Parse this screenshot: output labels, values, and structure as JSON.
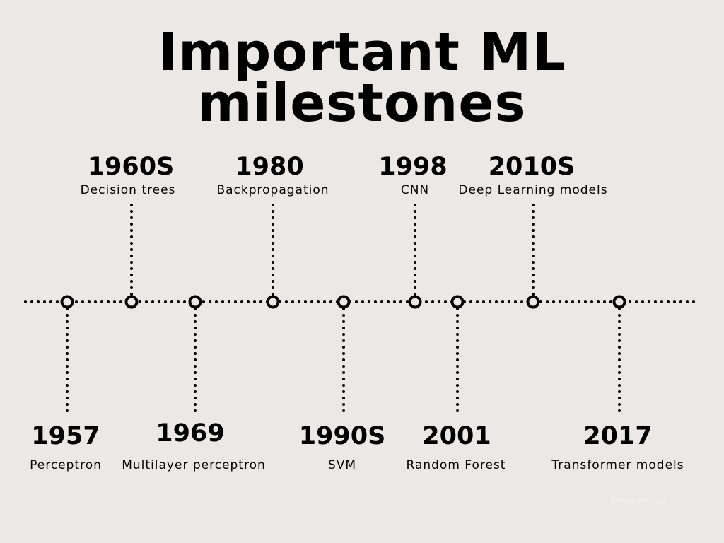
{
  "title": {
    "line1": "Important ML",
    "line2": "milestones"
  },
  "milestones": [
    {
      "year": "1957",
      "label": "Perceptron",
      "side": "below"
    },
    {
      "year": "1960S",
      "label": "Decision trees",
      "side": "above"
    },
    {
      "year": "1969",
      "label": "Multilayer perceptron",
      "side": "below"
    },
    {
      "year": "1980",
      "label": "Backpropagation",
      "side": "above"
    },
    {
      "year": "1990S",
      "label": "SVM",
      "side": "below"
    },
    {
      "year": "1998",
      "label": "CNN",
      "side": "above"
    },
    {
      "year": "2001",
      "label": "Random Forest",
      "side": "below"
    },
    {
      "year": "2010S",
      "label": "Deep Learning models",
      "side": "above"
    },
    {
      "year": "2017",
      "label": "Transformer models",
      "side": "below"
    }
  ],
  "watermark": "@marizombie",
  "colors": {
    "background": "#ebe8e6",
    "ink": "#000000",
    "watermark": "#f6f2ef"
  }
}
